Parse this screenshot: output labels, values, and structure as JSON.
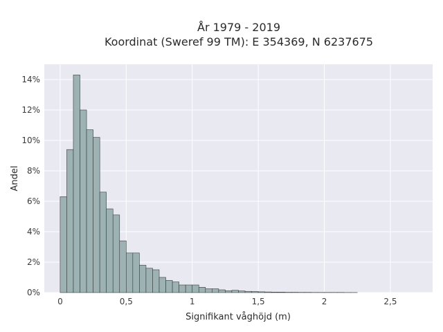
{
  "chart_data": {
    "type": "bar",
    "title": [
      "År 1979 - 2019",
      "Koordinat (Sweref 99 TM): E 354369, N 6237675"
    ],
    "xlabel": "Signifikant våghöjd (m)",
    "ylabel": "Andel",
    "xlim": [
      -0.12,
      2.82
    ],
    "ylim": [
      0,
      0.15
    ],
    "x_ticks": [
      0,
      0.5,
      1,
      1.5,
      2,
      2.5
    ],
    "x_tick_labels": [
      "0",
      "0,5",
      "1",
      "1,5",
      "2",
      "2,5"
    ],
    "y_ticks": [
      0,
      0.02,
      0.04,
      0.06,
      0.08,
      0.1,
      0.12,
      0.14
    ],
    "y_tick_labels": [
      "0%",
      "2%",
      "4%",
      "6%",
      "8%",
      "10%",
      "12%",
      "14%"
    ],
    "grid": true,
    "bin_width": 0.05,
    "bins_start": 0,
    "values": [
      0.063,
      0.094,
      0.143,
      0.12,
      0.107,
      0.102,
      0.066,
      0.055,
      0.051,
      0.034,
      0.026,
      0.026,
      0.018,
      0.016,
      0.015,
      0.01,
      0.008,
      0.007,
      0.005,
      0.005,
      0.005,
      0.0035,
      0.0025,
      0.0025,
      0.0018,
      0.0012,
      0.0015,
      0.0011,
      0.0008,
      0.0007,
      0.0005,
      0.0004,
      0.0003,
      0.0003,
      0.0002,
      0.0002,
      0.00015,
      0.00015,
      0.0001,
      0.0001,
      0.0001,
      0.0001,
      0.0001,
      5e-05,
      5e-05
    ],
    "colors": {
      "bar_fill": "#9db3b3",
      "bar_edge": "#3a3a3a",
      "plot_bg": "#e9e9f1",
      "grid": "#ffffff"
    }
  }
}
